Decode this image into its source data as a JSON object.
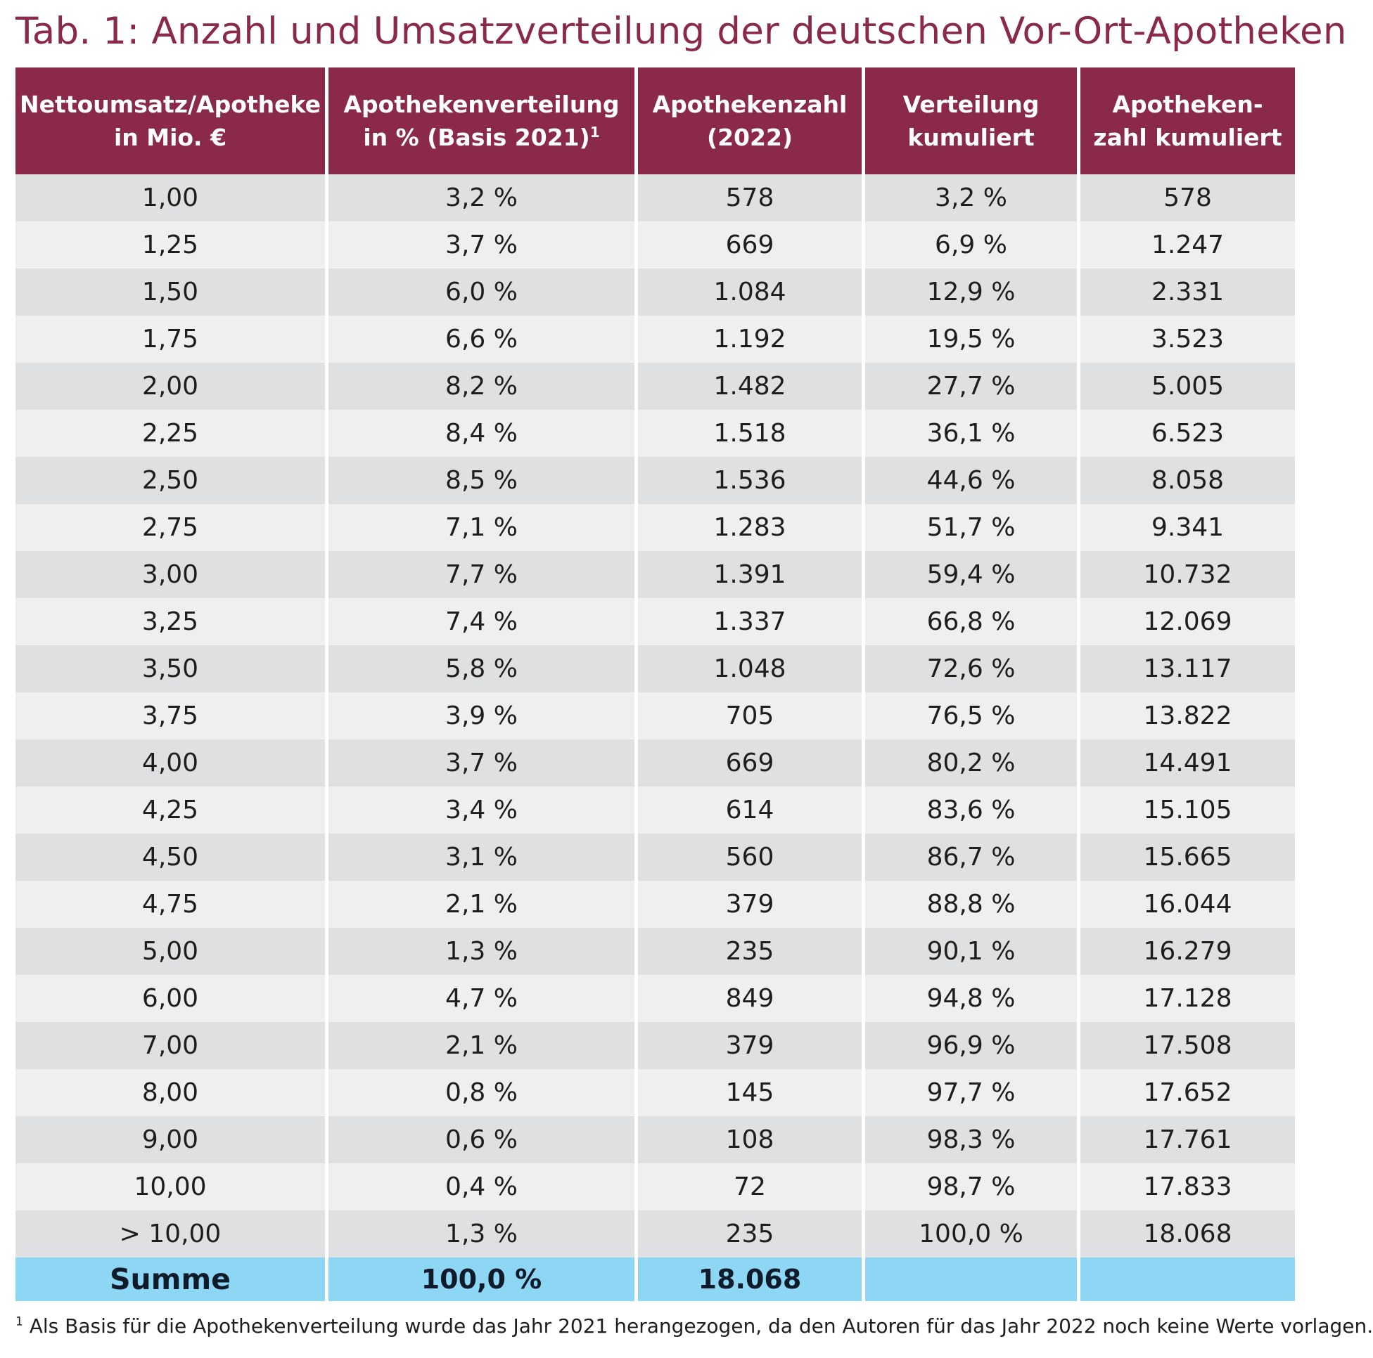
{
  "title": "Tab. 1: Anzahl und Umsatzverteilung der deutschen Vor-Ort-Apotheken",
  "header": {
    "col1": [
      "Nettoumsatz/Apotheke",
      "in Mio. €"
    ],
    "col2": [
      "Apothekenverteilung",
      "in % (Basis 2021)"
    ],
    "col2_footnote_mark": "1",
    "col3": [
      "Apothekenzahl",
      "(2022)"
    ],
    "col4": [
      "Verteilung",
      "kumuliert"
    ],
    "col5": [
      "Apotheken-",
      "zahl kumuliert"
    ]
  },
  "rows": [
    {
      "umsatz": "1,00",
      "verteilung": "3,2 %",
      "zahl": "578",
      "verteilung_kum": "3,2 %",
      "zahl_kum": "578"
    },
    {
      "umsatz": "1,25",
      "verteilung": "3,7 %",
      "zahl": "669",
      "verteilung_kum": "6,9 %",
      "zahl_kum": "1.247"
    },
    {
      "umsatz": "1,50",
      "verteilung": "6,0 %",
      "zahl": "1.084",
      "verteilung_kum": "12,9 %",
      "zahl_kum": "2.331"
    },
    {
      "umsatz": "1,75",
      "verteilung": "6,6 %",
      "zahl": "1.192",
      "verteilung_kum": "19,5 %",
      "zahl_kum": "3.523"
    },
    {
      "umsatz": "2,00",
      "verteilung": "8,2 %",
      "zahl": "1.482",
      "verteilung_kum": "27,7 %",
      "zahl_kum": "5.005"
    },
    {
      "umsatz": "2,25",
      "verteilung": "8,4 %",
      "zahl": "1.518",
      "verteilung_kum": "36,1 %",
      "zahl_kum": "6.523"
    },
    {
      "umsatz": "2,50",
      "verteilung": "8,5 %",
      "zahl": "1.536",
      "verteilung_kum": "44,6 %",
      "zahl_kum": "8.058"
    },
    {
      "umsatz": "2,75",
      "verteilung": "7,1 %",
      "zahl": "1.283",
      "verteilung_kum": "51,7 %",
      "zahl_kum": "9.341"
    },
    {
      "umsatz": "3,00",
      "verteilung": "7,7 %",
      "zahl": "1.391",
      "verteilung_kum": "59,4 %",
      "zahl_kum": "10.732"
    },
    {
      "umsatz": "3,25",
      "verteilung": "7,4 %",
      "zahl": "1.337",
      "verteilung_kum": "66,8 %",
      "zahl_kum": "12.069"
    },
    {
      "umsatz": "3,50",
      "verteilung": "5,8 %",
      "zahl": "1.048",
      "verteilung_kum": "72,6 %",
      "zahl_kum": "13.117"
    },
    {
      "umsatz": "3,75",
      "verteilung": "3,9 %",
      "zahl": "705",
      "verteilung_kum": "76,5 %",
      "zahl_kum": "13.822"
    },
    {
      "umsatz": "4,00",
      "verteilung": "3,7 %",
      "zahl": "669",
      "verteilung_kum": "80,2 %",
      "zahl_kum": "14.491"
    },
    {
      "umsatz": "4,25",
      "verteilung": "3,4 %",
      "zahl": "614",
      "verteilung_kum": "83,6 %",
      "zahl_kum": "15.105"
    },
    {
      "umsatz": "4,50",
      "verteilung": "3,1 %",
      "zahl": "560",
      "verteilung_kum": "86,7 %",
      "zahl_kum": "15.665"
    },
    {
      "umsatz": "4,75",
      "verteilung": "2,1 %",
      "zahl": "379",
      "verteilung_kum": "88,8 %",
      "zahl_kum": "16.044"
    },
    {
      "umsatz": "5,00",
      "verteilung": "1,3 %",
      "zahl": "235",
      "verteilung_kum": "90,1 %",
      "zahl_kum": "16.279"
    },
    {
      "umsatz": "6,00",
      "verteilung": "4,7 %",
      "zahl": "849",
      "verteilung_kum": "94,8 %",
      "zahl_kum": "17.128"
    },
    {
      "umsatz": "7,00",
      "verteilung": "2,1 %",
      "zahl": "379",
      "verteilung_kum": "96,9 %",
      "zahl_kum": "17.508"
    },
    {
      "umsatz": "8,00",
      "verteilung": "0,8 %",
      "zahl": "145",
      "verteilung_kum": "97,7 %",
      "zahl_kum": "17.652"
    },
    {
      "umsatz": "9,00",
      "verteilung": "0,6 %",
      "zahl": "108",
      "verteilung_kum": "98,3 %",
      "zahl_kum": "17.761"
    },
    {
      "umsatz": "10,00",
      "verteilung": "0,4 %",
      "zahl": "72",
      "verteilung_kum": "98,7 %",
      "zahl_kum": "17.833"
    },
    {
      "umsatz": "> 10,00",
      "verteilung": "1,3 %",
      "zahl": "235",
      "verteilung_kum": "100,0 %",
      "zahl_kum": "18.068"
    }
  ],
  "summary": {
    "label": "Summe",
    "verteilung": "100,0 %",
    "zahl": "18.068",
    "verteilung_kum": "",
    "zahl_kum": ""
  },
  "footnote": {
    "mark": "1",
    "text": "Als Basis für die Apothekenverteilung wurde das Jahr 2021 herangezogen, da den Autoren für das Jahr 2022 noch keine Werte vorlagen."
  },
  "colors": {
    "header_bg": "#8a2a48",
    "title_color": "#8a2a48",
    "row_dark": "#dfe0e1",
    "row_light": "#efefef",
    "summary_bg": "#8dd7f5"
  }
}
